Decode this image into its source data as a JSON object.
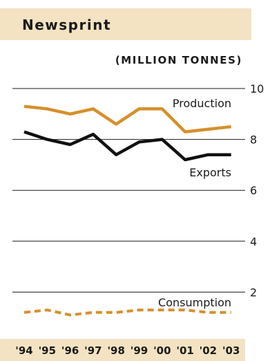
{
  "chart_data": {
    "type": "line",
    "title": "Newsprint",
    "subtitle": "(MILLION TONNES)",
    "categories": [
      "'94",
      "'95",
      "'96",
      "'97",
      "'98",
      "'99",
      "'00",
      "'01",
      "'02",
      "'03"
    ],
    "yticks": [
      "10",
      "8",
      "6",
      "4",
      "2"
    ],
    "ylim": [
      0,
      10
    ],
    "grid": true,
    "series": [
      {
        "name": "Production",
        "color": "#d68f2a",
        "style": "solid",
        "x": [
          1994.0,
          1995.0,
          1996.0,
          1997.0,
          1998.0,
          1999.0,
          2000.0,
          2001.0,
          2002.0,
          2003.0
        ],
        "values": [
          9.3,
          9.2,
          9.0,
          9.2,
          8.6,
          9.2,
          9.2,
          8.3,
          8.4,
          8.5
        ]
      },
      {
        "name": "Exports",
        "color": "#111111",
        "style": "solid",
        "x": [
          1994.0,
          1995.0,
          1996.0,
          1997.0,
          1998.0,
          1999.0,
          2000.0,
          2001.0,
          2002.0,
          2003.0
        ],
        "values": [
          8.3,
          8.0,
          7.8,
          8.2,
          7.4,
          7.9,
          8.0,
          7.2,
          7.4,
          7.4
        ]
      },
      {
        "name": "Consumption",
        "color": "#d68f2a",
        "style": "dashed",
        "x": [
          1994.0,
          1995.0,
          1996.0,
          1997.0,
          1998.0,
          1999.0,
          2000.0,
          2001.0,
          2002.0,
          2003.0
        ],
        "values": [
          1.2,
          1.3,
          1.1,
          1.2,
          1.2,
          1.3,
          1.3,
          1.3,
          1.2,
          1.2
        ]
      }
    ]
  }
}
